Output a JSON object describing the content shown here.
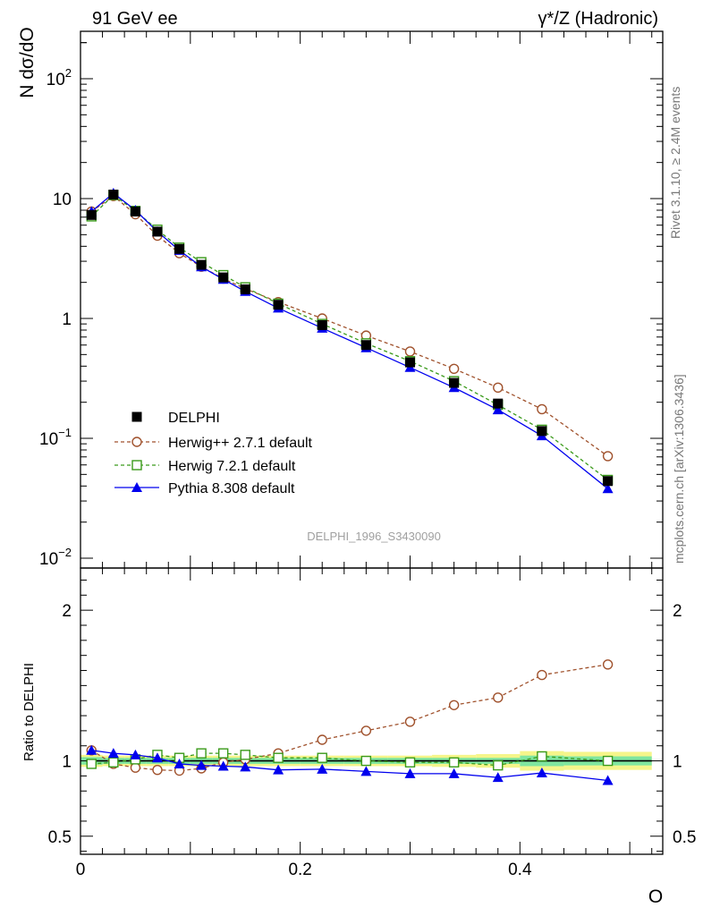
{
  "header": {
    "left_title": "91 GeV ee",
    "right_title": "γ*/Z (Hadronic)"
  },
  "side_labels": {
    "rivet": "Rivet 3.1.10, ≥ 2.4M events",
    "mcplots": "mcplots.cern.ch [arXiv:1306.3436]"
  },
  "watermark": "DELPHI_1996_S3430090",
  "colors": {
    "herwigpp": "#a0522d",
    "herwig7": "#3a9a1a",
    "pythia": "#0000ee",
    "data": "#000000",
    "band_inner": "#7fe6a0",
    "band_outer": "#f5f58a"
  },
  "chart_data": [
    {
      "type": "scatter",
      "ylabel": "N dσ/dO",
      "yscale": "log",
      "xlim": [
        0,
        0.53
      ],
      "ylim": [
        0.01,
        250
      ],
      "y_tick_labels": [
        "10^-2",
        "10^-1",
        "1",
        "10",
        "10^2"
      ],
      "legend": {
        "placement": "lower-left"
      },
      "x": [
        0.01,
        0.03,
        0.05,
        0.07,
        0.09,
        0.11,
        0.13,
        0.15,
        0.18,
        0.22,
        0.26,
        0.3,
        0.34,
        0.38,
        0.42,
        0.48
      ],
      "series": [
        {
          "name": "DELPHI",
          "key": "data",
          "values": [
            7.3,
            10.8,
            7.8,
            5.3,
            3.8,
            2.8,
            2.2,
            1.75,
            1.3,
            0.88,
            0.6,
            0.43,
            0.29,
            0.195,
            0.115,
            0.044
          ]
        },
        {
          "name": "Herwig++ 2.7.1 default",
          "key": "herwigpp",
          "values": [
            7.8,
            10.5,
            7.4,
            4.9,
            3.5,
            2.7,
            2.15,
            1.77,
            1.37,
            1.0,
            0.72,
            0.53,
            0.38,
            0.265,
            0.175,
            0.071
          ]
        },
        {
          "name": "Herwig 7.2.1 default",
          "key": "herwig7",
          "values": [
            7.1,
            10.7,
            7.9,
            5.5,
            3.9,
            2.95,
            2.3,
            1.82,
            1.33,
            0.9,
            0.62,
            0.44,
            0.3,
            0.19,
            0.118,
            0.045
          ]
        },
        {
          "name": "Pythia 8.308 default",
          "key": "pythia",
          "values": [
            7.8,
            11.1,
            8.0,
            5.3,
            3.7,
            2.7,
            2.12,
            1.68,
            1.22,
            0.83,
            0.57,
            0.39,
            0.265,
            0.173,
            0.105,
            0.038
          ]
        }
      ]
    },
    {
      "type": "line",
      "xlabel": "O",
      "ylabel": "Ratio to DELPHI",
      "xlim": [
        0,
        0.53
      ],
      "ylim": [
        0.38,
        2.28
      ],
      "x_tick_labels": [
        "0",
        "0.2",
        "0.4"
      ],
      "y_tick_labels": [
        "0.5",
        "1",
        "2"
      ],
      "x": [
        0.01,
        0.03,
        0.05,
        0.07,
        0.09,
        0.11,
        0.13,
        0.15,
        0.18,
        0.22,
        0.26,
        0.3,
        0.34,
        0.38,
        0.42,
        0.48
      ],
      "band_edges": [
        0,
        0.02,
        0.04,
        0.06,
        0.08,
        0.1,
        0.12,
        0.14,
        0.16,
        0.2,
        0.24,
        0.28,
        0.32,
        0.36,
        0.4,
        0.44,
        0.52
      ],
      "band_inner": [
        0.025,
        0.02,
        0.02,
        0.02,
        0.02,
        0.02,
        0.02,
        0.02,
        0.02,
        0.02,
        0.02,
        0.02,
        0.02,
        0.02,
        0.035,
        0.03
      ],
      "band_outer": [
        0.04,
        0.035,
        0.035,
        0.035,
        0.035,
        0.035,
        0.035,
        0.035,
        0.035,
        0.035,
        0.035,
        0.035,
        0.04,
        0.045,
        0.065,
        0.06
      ],
      "series": [
        {
          "name": "Herwig++ 2.7.1 default",
          "key": "herwigpp",
          "values": [
            1.07,
            0.98,
            0.955,
            0.94,
            0.935,
            0.95,
            0.99,
            1.01,
            1.05,
            1.14,
            1.2,
            1.26,
            1.37,
            1.42,
            1.57,
            1.64
          ]
        },
        {
          "name": "Herwig 7.2.1 default",
          "key": "herwig7",
          "values": [
            0.98,
            0.99,
            1.01,
            1.04,
            1.02,
            1.05,
            1.05,
            1.04,
            1.02,
            1.02,
            1.0,
            0.99,
            0.99,
            0.97,
            1.03,
            1.0
          ]
        },
        {
          "name": "Pythia 8.308 default",
          "key": "pythia",
          "values": [
            1.07,
            1.05,
            1.04,
            1.02,
            0.98,
            0.97,
            0.965,
            0.96,
            0.94,
            0.945,
            0.93,
            0.915,
            0.915,
            0.89,
            0.92,
            0.87
          ]
        }
      ]
    }
  ]
}
